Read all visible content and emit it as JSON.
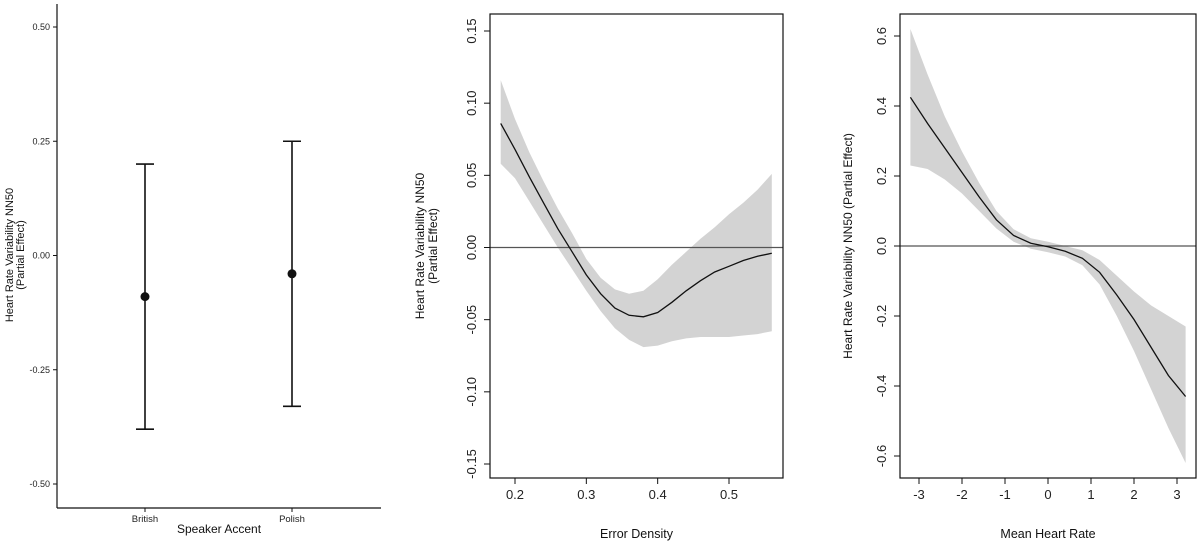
{
  "chart_data": [
    {
      "type": "scatter",
      "subtype": "point-with-errorbars",
      "xlabel": "Speaker Accent",
      "ylabel_lines": [
        "Heart Rate Variability NN50",
        "(Partial Effect)"
      ],
      "categories": [
        "British",
        "Polish"
      ],
      "points": [
        {
          "category": "British",
          "estimate": -0.09,
          "lower": -0.38,
          "upper": 0.2
        },
        {
          "category": "Polish",
          "estimate": -0.04,
          "lower": -0.33,
          "upper": 0.25
        }
      ],
      "yticks": [
        "0.50",
        "0.25",
        "0.00",
        "-0.25",
        "-0.50"
      ],
      "ylim": [
        -0.5,
        0.5
      ],
      "grid": false
    },
    {
      "type": "line",
      "subtype": "smooth-with-confidence-band",
      "xlabel": "Error Density",
      "ylabel_lines": [
        "Heart Rate Variability NN50",
        "(Partial Effect)"
      ],
      "xticks": [
        "0.2",
        "0.3",
        "0.4",
        "0.5"
      ],
      "yticks": [
        "0.15",
        "0.10",
        "0.05",
        "0.00",
        "-0.05",
        "-0.10",
        "-0.15"
      ],
      "xlim": [
        0.175,
        0.575
      ],
      "ylim": [
        -0.16,
        0.16
      ],
      "reference_line_y": 0,
      "x": [
        0.18,
        0.2,
        0.22,
        0.24,
        0.26,
        0.28,
        0.3,
        0.32,
        0.34,
        0.36,
        0.38,
        0.4,
        0.42,
        0.44,
        0.46,
        0.48,
        0.5,
        0.52,
        0.54,
        0.56
      ],
      "fit": [
        0.086,
        0.068,
        0.049,
        0.031,
        0.013,
        -0.003,
        -0.019,
        -0.032,
        -0.042,
        -0.047,
        -0.048,
        -0.045,
        -0.038,
        -0.03,
        -0.023,
        -0.017,
        -0.013,
        -0.009,
        -0.006,
        -0.004
      ],
      "lower": [
        0.058,
        0.048,
        0.032,
        0.016,
        0.0,
        -0.015,
        -0.03,
        -0.044,
        -0.056,
        -0.064,
        -0.069,
        -0.068,
        -0.065,
        -0.063,
        -0.062,
        -0.062,
        -0.062,
        -0.061,
        -0.06,
        -0.058
      ],
      "upper": [
        0.116,
        0.089,
        0.066,
        0.046,
        0.027,
        0.01,
        -0.008,
        -0.021,
        -0.029,
        -0.032,
        -0.03,
        -0.022,
        -0.012,
        -0.003,
        0.006,
        0.014,
        0.023,
        0.031,
        0.04,
        0.051
      ],
      "grid": false
    },
    {
      "type": "line",
      "subtype": "smooth-with-confidence-band",
      "xlabel": "Mean Heart Rate",
      "ylabel_lines": [
        "Heart Rate Variability NN50 (Partial Effect)"
      ],
      "xticks": [
        "-3",
        "-2",
        "-1",
        "0",
        "1",
        "2",
        "3"
      ],
      "yticks": [
        "0.6",
        "0.4",
        "0.2",
        "0.0",
        "-0.2",
        "-0.4",
        "-0.6"
      ],
      "xlim": [
        -3.4,
        3.4
      ],
      "ylim": [
        -0.66,
        0.66
      ],
      "reference_line_y": 0,
      "x": [
        -3.2,
        -2.8,
        -2.4,
        -2.0,
        -1.6,
        -1.2,
        -0.8,
        -0.4,
        0.0,
        0.4,
        0.8,
        1.2,
        1.6,
        2.0,
        2.4,
        2.8,
        3.2
      ],
      "fit": [
        0.425,
        0.35,
        0.28,
        0.21,
        0.14,
        0.075,
        0.03,
        0.008,
        -0.002,
        -0.015,
        -0.035,
        -0.075,
        -0.14,
        -0.21,
        -0.29,
        -0.37,
        -0.43
      ],
      "lower": [
        0.23,
        0.22,
        0.19,
        0.15,
        0.1,
        0.05,
        0.012,
        -0.008,
        -0.018,
        -0.03,
        -0.055,
        -0.11,
        -0.2,
        -0.3,
        -0.41,
        -0.52,
        -0.62
      ],
      "upper": [
        0.62,
        0.49,
        0.37,
        0.27,
        0.18,
        0.1,
        0.048,
        0.022,
        0.012,
        0.0,
        -0.012,
        -0.04,
        -0.085,
        -0.13,
        -0.17,
        -0.2,
        -0.23
      ],
      "grid": false
    }
  ],
  "colors": {
    "line": "#111111",
    "band": "#d3d3d3",
    "reference": "#555555",
    "axis": "#111111"
  }
}
